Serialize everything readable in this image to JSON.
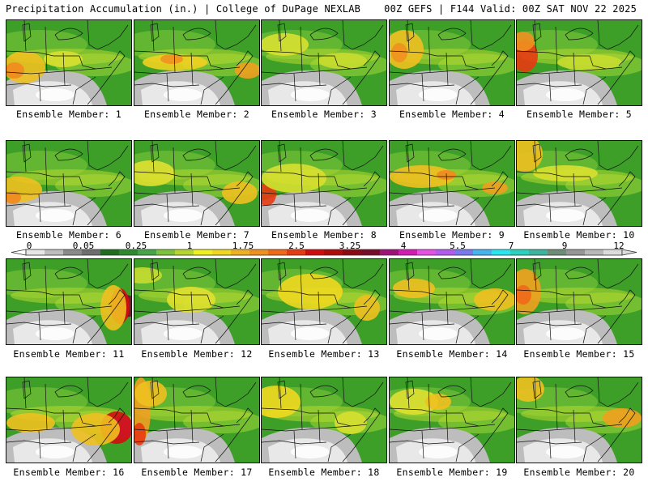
{
  "header": {
    "title": "Precipitation Accumulation (in.) | College of DuPage NEXLAB",
    "run_info": "00Z GEFS | F144 Valid: 00Z SAT NOV 22 2025"
  },
  "colorbar": {
    "labels": [
      "0",
      "0.05",
      "0.25",
      "1",
      "1.75",
      "2.5",
      "3.25",
      "4",
      "5.5",
      "7",
      "9",
      "12"
    ],
    "colors": [
      "#e6e6e6",
      "#bdbdbd",
      "#8a8a8a",
      "#6e6e6e",
      "#1f6e1f",
      "#2f8a2f",
      "#46a546",
      "#7cc23a",
      "#b6d62e",
      "#f0f020",
      "#f0d820",
      "#f0b020",
      "#f09020",
      "#f06818",
      "#e83a12",
      "#d20c0c",
      "#b00a0a",
      "#8c0a14",
      "#780c2a",
      "#a0107a",
      "#d21cb4",
      "#e650e6",
      "#b45af0",
      "#7878f0",
      "#46b4f0",
      "#28e6f0",
      "#28d2be",
      "#3cb4a0",
      "#6e8c78",
      "#969696",
      "#b9b9b9",
      "#dcdcdc"
    ]
  },
  "panels": [
    {
      "member": 1,
      "caption": "Ensemble Member: 1"
    },
    {
      "member": 2,
      "caption": "Ensemble Member: 2"
    },
    {
      "member": 3,
      "caption": "Ensemble Member: 3"
    },
    {
      "member": 4,
      "caption": "Ensemble Member: 4"
    },
    {
      "member": 5,
      "caption": "Ensemble Member: 5"
    },
    {
      "member": 6,
      "caption": "Ensemble Member: 6"
    },
    {
      "member": 7,
      "caption": "Ensemble Member: 7"
    },
    {
      "member": 8,
      "caption": "Ensemble Member: 8"
    },
    {
      "member": 9,
      "caption": "Ensemble Member: 9"
    },
    {
      "member": 10,
      "caption": "Ensemble Member: 10"
    },
    {
      "member": 11,
      "caption": "Ensemble Member: 11"
    },
    {
      "member": 12,
      "caption": "Ensemble Member: 12"
    },
    {
      "member": 13,
      "caption": "Ensemble Member: 13"
    },
    {
      "member": 14,
      "caption": "Ensemble Member: 14"
    },
    {
      "member": 15,
      "caption": "Ensemble Member: 15"
    },
    {
      "member": 16,
      "caption": "Ensemble Member: 16"
    },
    {
      "member": 17,
      "caption": "Ensemble Member: 17"
    },
    {
      "member": 18,
      "caption": "Ensemble Member: 18"
    },
    {
      "member": 19,
      "caption": "Ensemble Member: 19"
    },
    {
      "member": 20,
      "caption": "Ensemble Member: 20"
    }
  ]
}
